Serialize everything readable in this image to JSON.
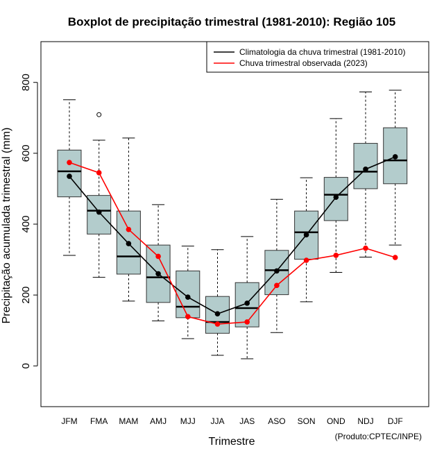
{
  "chart_data": {
    "type": "boxplot+line",
    "title": "Boxplot de precipitação trimestral (1981-2010): Região 105",
    "xlabel": "Trimestre",
    "ylabel": "Precipitação acumulada trimestral (mm)",
    "ylim": [
      -115,
      915
    ],
    "yticks": [
      0,
      200,
      400,
      600,
      800
    ],
    "categories": [
      "JFM",
      "FMA",
      "MAM",
      "AMJ",
      "MJJ",
      "JJA",
      "JAS",
      "ASO",
      "SON",
      "OND",
      "NDJ",
      "DJF"
    ],
    "boxes": [
      {
        "whisker_low": 312,
        "q1": 477,
        "median": 549,
        "q3": 609,
        "whisker_high": 751,
        "outliers": []
      },
      {
        "whisker_low": 250,
        "q1": 372,
        "median": 438,
        "q3": 481,
        "whisker_high": 637,
        "outliers": [
          709
        ]
      },
      {
        "whisker_low": 183,
        "q1": 259,
        "median": 309,
        "q3": 437,
        "whisker_high": 643,
        "outliers": []
      },
      {
        "whisker_low": 127,
        "q1": 179,
        "median": 250,
        "q3": 341,
        "whisker_high": 455,
        "outliers": []
      },
      {
        "whisker_low": 77,
        "q1": 136,
        "median": 167,
        "q3": 268,
        "whisker_high": 338,
        "outliers": []
      },
      {
        "whisker_low": 30,
        "q1": 92,
        "median": 124,
        "q3": 196,
        "whisker_high": 328,
        "outliers": []
      },
      {
        "whisker_low": 20,
        "q1": 110,
        "median": 163,
        "q3": 235,
        "whisker_high": 365,
        "outliers": []
      },
      {
        "whisker_low": 94,
        "q1": 201,
        "median": 270,
        "q3": 326,
        "whisker_high": 470,
        "outliers": []
      },
      {
        "whisker_low": 181,
        "q1": 301,
        "median": 377,
        "q3": 437,
        "whisker_high": 531,
        "outliers": []
      },
      {
        "whisker_low": 264,
        "q1": 410,
        "median": 483,
        "q3": 532,
        "whisker_high": 698,
        "outliers": []
      },
      {
        "whisker_low": 307,
        "q1": 500,
        "median": 548,
        "q3": 628,
        "whisker_high": 773,
        "outliers": []
      },
      {
        "whisker_low": 341,
        "q1": 514,
        "median": 580,
        "q3": 672,
        "whisker_high": 778,
        "outliers": []
      }
    ],
    "series": [
      {
        "name": "Climatologia da chuva trimestral (1981-2010)",
        "color": "#000000",
        "values": [
          535,
          434,
          345,
          260,
          194,
          147,
          177,
          268,
          370,
          476,
          555,
          590
        ]
      },
      {
        "name": "Chuva trimestral observada (2023)",
        "color": "#ff0000",
        "values": [
          574,
          545,
          385,
          309,
          139,
          118,
          124,
          227,
          298,
          312,
          332,
          306
        ]
      }
    ],
    "box_fill": "#b3cccc",
    "legend_position": "top-right",
    "credit": "(Produto:CPTEC/INPE)"
  }
}
